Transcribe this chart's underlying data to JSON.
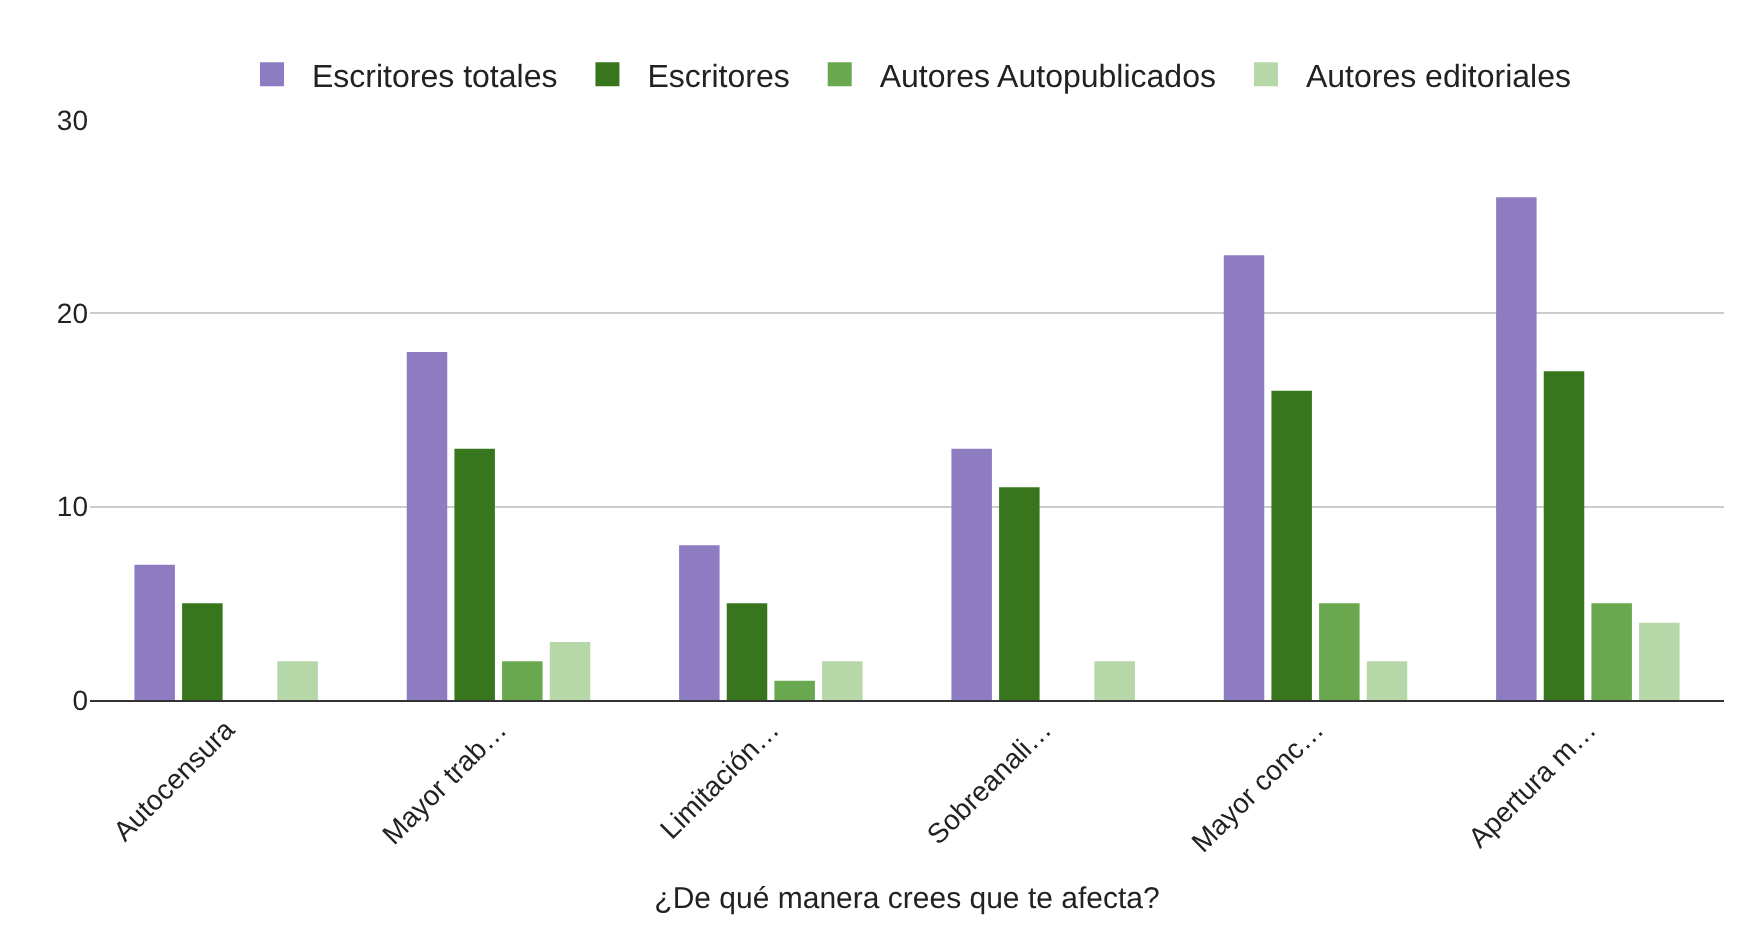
{
  "chart_data": {
    "type": "bar",
    "xlabel": "¿De qué manera crees que te afecta?",
    "categories": [
      "Autocensura",
      "Mayor trab…",
      "Limitación…",
      "Sobreanali…",
      "Mayor conc…",
      "Apertura m…"
    ],
    "series": [
      {
        "name": "Escritores totales",
        "color": "#8e7cc3",
        "values": [
          7,
          18,
          8,
          13,
          23,
          26
        ]
      },
      {
        "name": "Escritores",
        "color": "#38761d",
        "values": [
          5,
          13,
          5,
          11,
          16,
          17
        ]
      },
      {
        "name": "Autores Autopublicados",
        "color": "#6aa84f",
        "values": [
          0,
          2,
          1,
          0,
          5,
          5
        ]
      },
      {
        "name": "Autores editoriales",
        "color": "#b6d7a8",
        "values": [
          2,
          3,
          2,
          2,
          2,
          4
        ]
      }
    ],
    "ylim": [
      0,
      30
    ],
    "yticks": [
      0,
      10,
      20,
      30
    ],
    "grid": "y",
    "legend": "top"
  }
}
